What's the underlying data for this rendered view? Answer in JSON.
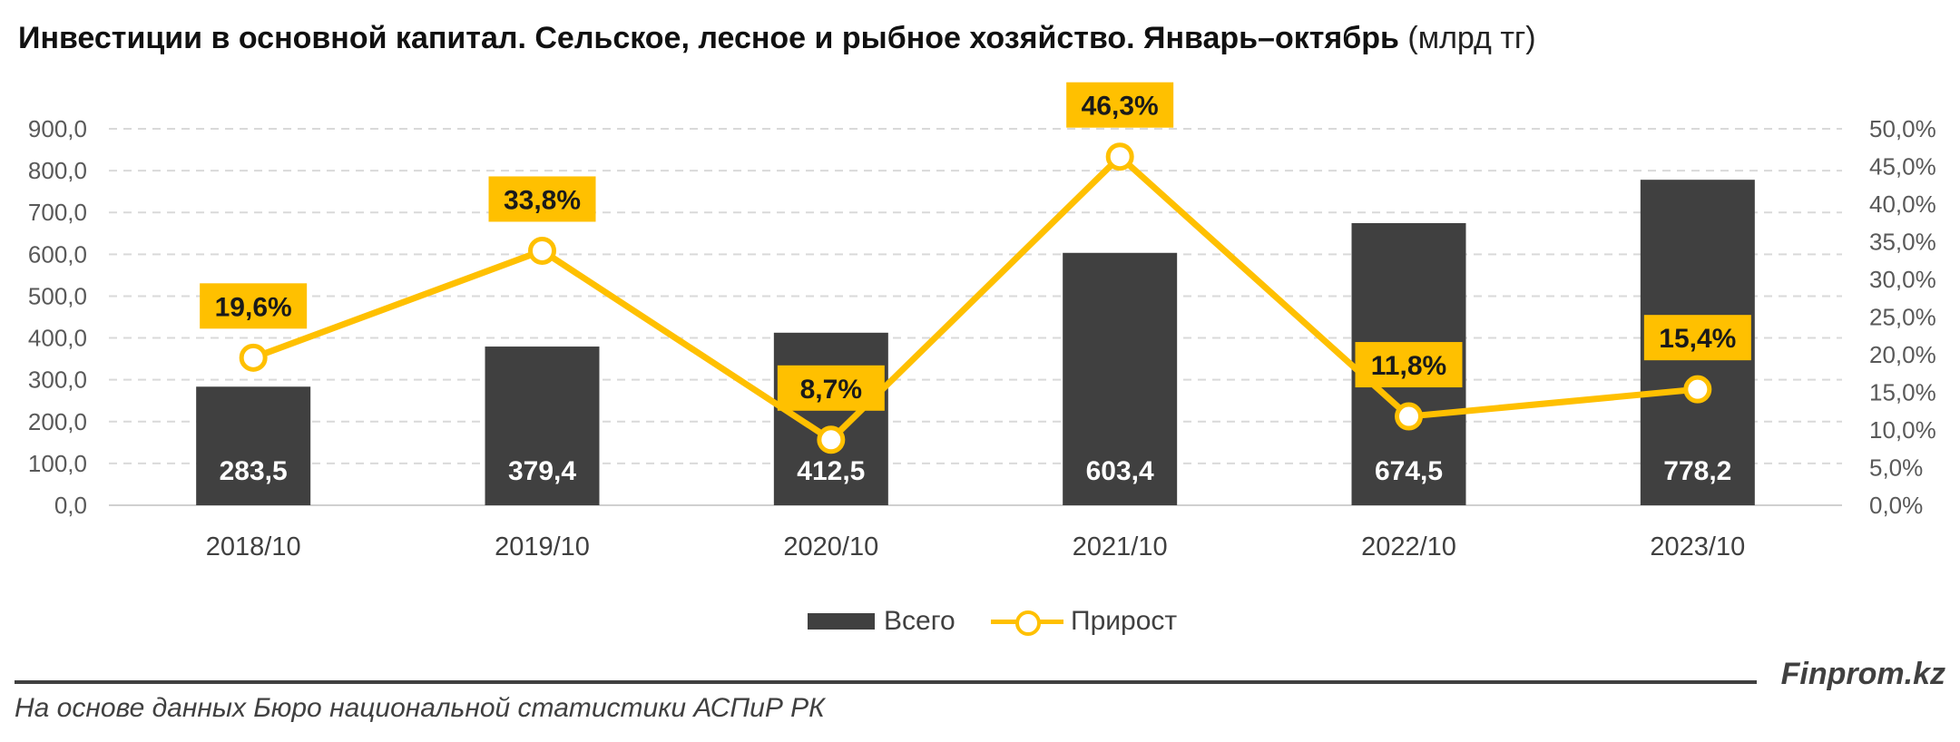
{
  "title": {
    "main": "Инвестиции в основной капитал. Сельское, лесное и рыбное хозяйство. Январь–октябрь",
    "unit": "(млрд тг)"
  },
  "chart_data": {
    "type": "bar",
    "categories": [
      "2018/10",
      "2019/10",
      "2020/10",
      "2021/10",
      "2022/10",
      "2023/10"
    ],
    "series": [
      {
        "name": "Всего",
        "type": "bar",
        "axis": "left",
        "values": [
          283.5,
          379.4,
          412.5,
          603.4,
          674.5,
          778.2
        ],
        "labels": [
          "283,5",
          "379,4",
          "412,5",
          "603,4",
          "674,5",
          "778,2"
        ]
      },
      {
        "name": "Прирост",
        "type": "line",
        "axis": "right",
        "values": [
          19.6,
          33.8,
          8.7,
          46.3,
          11.8,
          15.4
        ],
        "labels": [
          "19,6%",
          "33,8%",
          "8,7%",
          "46,3%",
          "11,8%",
          "15,4%"
        ]
      }
    ],
    "y_left": {
      "min": 0,
      "max": 900,
      "ticks": [
        "0,0",
        "100,0",
        "200,0",
        "300,0",
        "400,0",
        "500,0",
        "600,0",
        "700,0",
        "800,0",
        "900,0"
      ]
    },
    "y_right": {
      "min": 0,
      "max": 50,
      "ticks": [
        "0,0%",
        "5,0%",
        "10,0%",
        "15,0%",
        "20,0%",
        "25,0%",
        "30,0%",
        "35,0%",
        "40,0%",
        "45,0%",
        "50,0%"
      ]
    },
    "grid": true,
    "legend_position": "bottom",
    "colors": {
      "bar": "#404040",
      "line": "#FFC000",
      "label_box": "#FFC000"
    }
  },
  "legend": {
    "bar_label": "Всего",
    "line_label": "Прирост"
  },
  "footer": {
    "source": "На основе данных Бюро национальной статистики АСПиР РК",
    "brand": "Finprom.kz"
  }
}
